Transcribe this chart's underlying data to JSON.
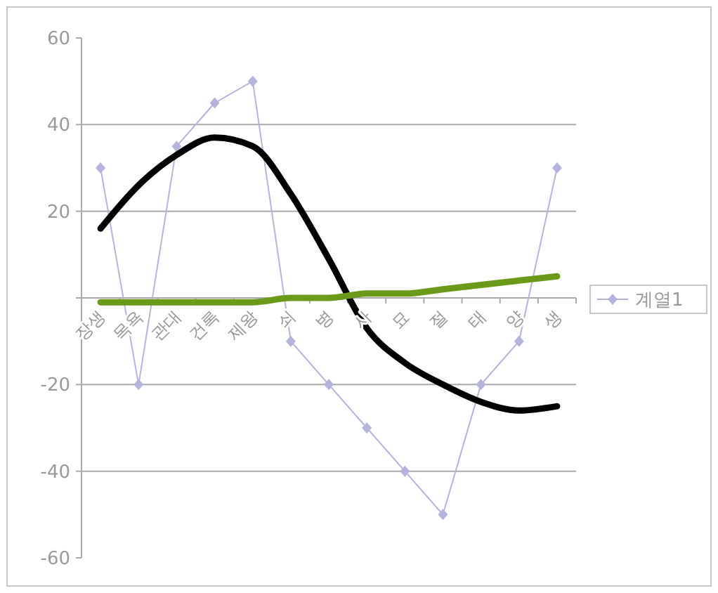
{
  "chart_data": {
    "type": "line",
    "categories": [
      "장생",
      "목욕",
      "관대",
      "건록",
      "제왕",
      "쇠",
      "병",
      "사",
      "묘",
      "절",
      "태",
      "양",
      "생"
    ],
    "series": [
      {
        "name": "계열1",
        "color": "#b4b4dc",
        "values": [
          30,
          -20,
          35,
          45,
          50,
          -10,
          -20,
          -30,
          -40,
          -50,
          -20,
          -10,
          30
        ],
        "marker": "diamond"
      },
      {
        "color": "#000000",
        "values": [
          16,
          26,
          33,
          37,
          35,
          24,
          9,
          -7,
          -15,
          -20,
          -24,
          -26,
          -25
        ],
        "marker": "none"
      },
      {
        "color": "#6b9a1a",
        "values": [
          -1,
          -1,
          -1,
          -1,
          -1,
          0,
          0,
          1,
          1,
          2,
          3,
          4,
          5
        ],
        "marker": "none"
      }
    ],
    "ylim": [
      -60,
      60
    ],
    "yticks": [
      -60,
      -40,
      -20,
      {
        "value": 0,
        "label": null
      },
      20,
      40,
      60
    ],
    "grid": "y",
    "legend": "right"
  }
}
